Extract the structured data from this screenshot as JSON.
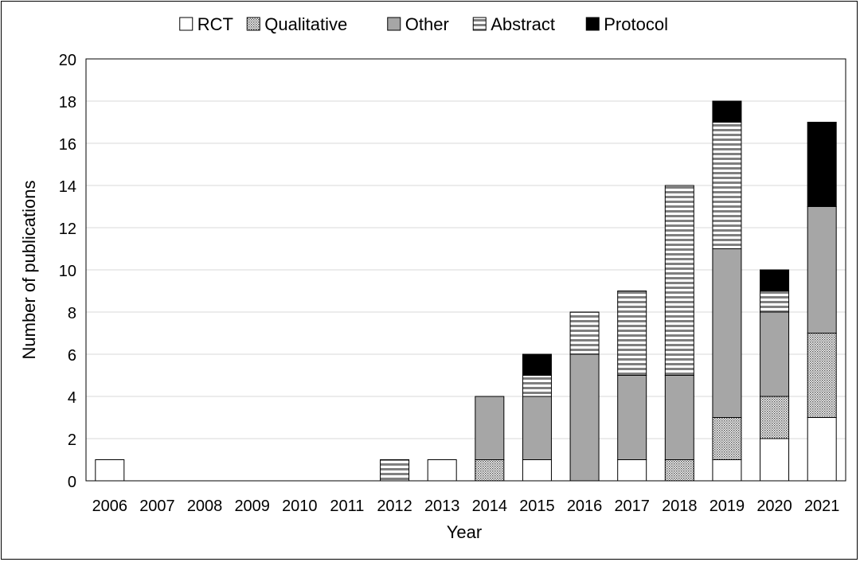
{
  "chart_data": {
    "type": "bar",
    "stacked": true,
    "title": "",
    "xlabel": "Year",
    "ylabel": "Number of publications",
    "ylim": [
      0,
      20
    ],
    "yticks": [
      0,
      2,
      4,
      6,
      8,
      10,
      12,
      14,
      16,
      18,
      20
    ],
    "grid": true,
    "legend_position": "top",
    "categories": [
      "2006",
      "2007",
      "2008",
      "2009",
      "2010",
      "2011",
      "2012",
      "2013",
      "2014",
      "2015",
      "2016",
      "2017",
      "2018",
      "2019",
      "2020",
      "2021"
    ],
    "series": [
      {
        "name": "RCT",
        "pattern": "solid-white",
        "values": [
          1,
          0,
          0,
          0,
          0,
          0,
          0,
          1,
          0,
          1,
          0,
          1,
          0,
          1,
          2,
          3
        ]
      },
      {
        "name": "Qualitative",
        "pattern": "dotted",
        "values": [
          0,
          0,
          0,
          0,
          0,
          0,
          0,
          0,
          1,
          0,
          0,
          0,
          1,
          2,
          2,
          4
        ]
      },
      {
        "name": "Other",
        "pattern": "solid-grey",
        "values": [
          0,
          0,
          0,
          0,
          0,
          0,
          0,
          0,
          3,
          3,
          6,
          4,
          4,
          8,
          4,
          6
        ]
      },
      {
        "name": "Abstract",
        "pattern": "horizontal-stripes",
        "values": [
          0,
          0,
          0,
          0,
          0,
          0,
          1,
          0,
          0,
          1,
          2,
          4,
          9,
          6,
          1,
          0
        ]
      },
      {
        "name": "Protocol",
        "pattern": "solid-black",
        "values": [
          0,
          0,
          0,
          0,
          0,
          0,
          0,
          0,
          0,
          1,
          0,
          0,
          0,
          1,
          1,
          4
        ]
      }
    ],
    "colors": {
      "rct": "#ffffff",
      "other": "#a6a6a6",
      "protocol": "#000000",
      "stripe": "#7f7f7f",
      "grid": "#d9d9d9"
    }
  }
}
